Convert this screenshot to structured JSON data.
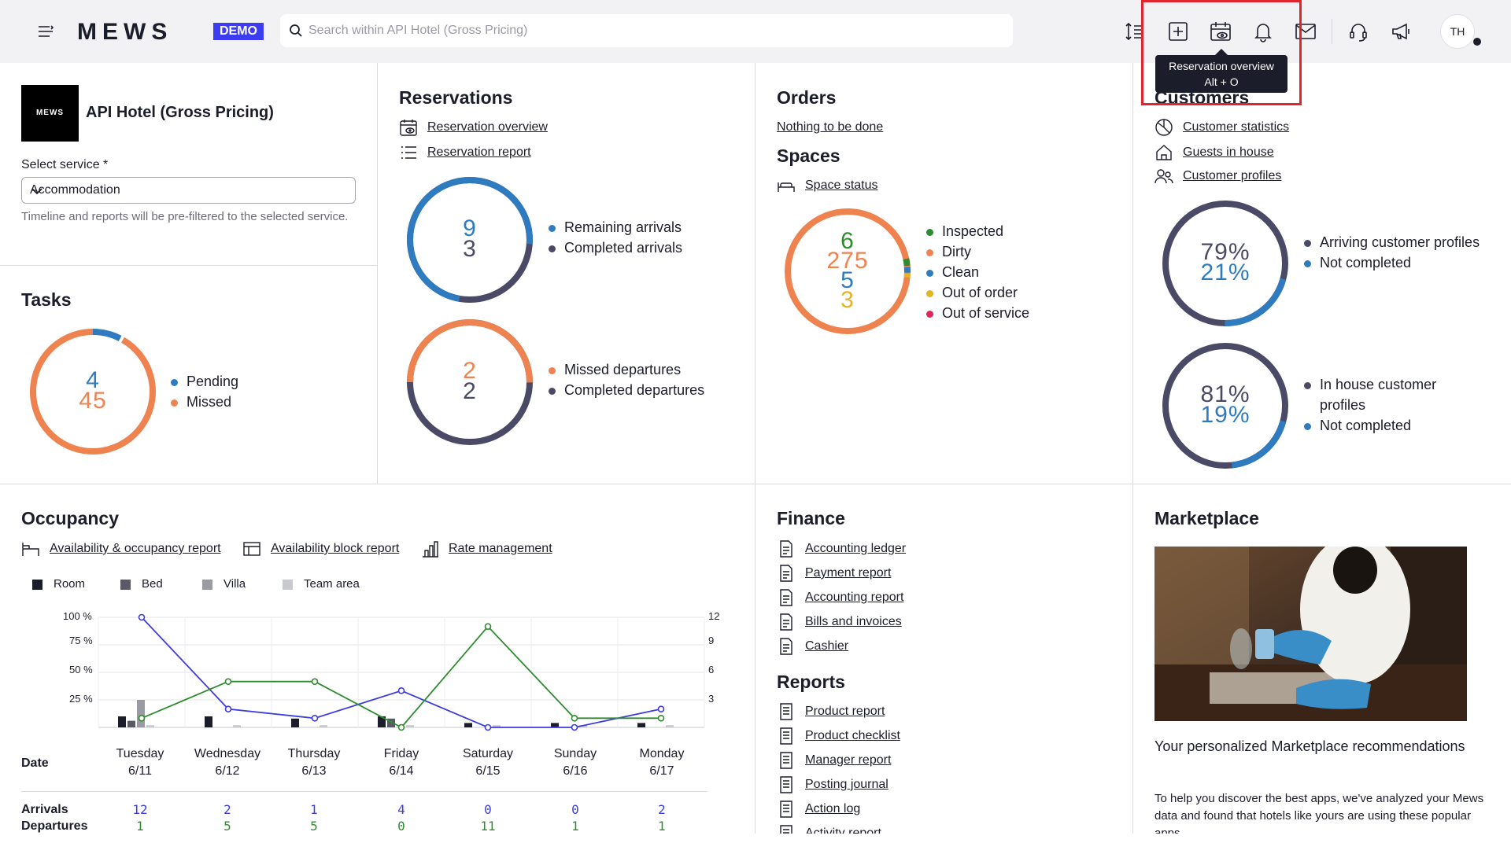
{
  "topbar": {
    "logo": "MEWS",
    "demo_badge": "DEMO",
    "search_placeholder": "Search within API Hotel (Gross Pricing)",
    "avatar_initials": "TH",
    "tooltip": {
      "title": "Reservation overview",
      "shortcut": "Alt + O"
    }
  },
  "hotel": {
    "logo_text": "MEWS",
    "name": "API Hotel (Gross Pricing)",
    "service_label": "Select service *",
    "service_value": "Accommodation",
    "service_help": "Timeline and reports will be pre-filtered to the selected service."
  },
  "tasks": {
    "title": "Tasks",
    "values": [
      "4",
      "45"
    ],
    "legend": [
      "Pending",
      "Missed"
    ]
  },
  "reservations": {
    "title": "Reservations",
    "links": [
      "Reservation overview",
      "Reservation report"
    ],
    "arrivals": {
      "values": [
        "9",
        "3"
      ],
      "legend": [
        "Remaining arrivals",
        "Completed arrivals"
      ]
    },
    "departures": {
      "values": [
        "2",
        "2"
      ],
      "legend": [
        "Missed departures",
        "Completed departures"
      ]
    }
  },
  "orders": {
    "title": "Orders",
    "link": "Nothing to be done"
  },
  "spaces": {
    "title": "Spaces",
    "link": "Space status",
    "values": [
      "6",
      "275",
      "5",
      "3"
    ],
    "legend": [
      "Inspected",
      "Dirty",
      "Clean",
      "Out of order",
      "Out of service"
    ]
  },
  "customers": {
    "title": "Customers",
    "links": [
      "Customer statistics",
      "Guests in house",
      "Customer profiles"
    ],
    "arriving": {
      "values": [
        "79%",
        "21%"
      ],
      "legend": [
        "Arriving customer profiles",
        "Not completed"
      ]
    },
    "inhouse": {
      "values": [
        "81%",
        "19%"
      ],
      "legend": [
        "In house customer profiles",
        "Not completed"
      ]
    }
  },
  "occupancy": {
    "title": "Occupancy",
    "links": [
      "Availability & occupancy report",
      "Availability block report",
      "Rate management"
    ],
    "legend": [
      "Room",
      "Bed",
      "Villa",
      "Team area"
    ],
    "left_ticks": [
      "100 %",
      "75 %",
      "50 %",
      "25 %"
    ],
    "right_ticks": [
      "12",
      "9",
      "6",
      "3"
    ],
    "date_label": "Date",
    "days": [
      {
        "name": "Tuesday",
        "date": "6/11"
      },
      {
        "name": "Wednesday",
        "date": "6/12"
      },
      {
        "name": "Thursday",
        "date": "6/13"
      },
      {
        "name": "Friday",
        "date": "6/14"
      },
      {
        "name": "Saturday",
        "date": "6/15"
      },
      {
        "name": "Sunday",
        "date": "6/16"
      },
      {
        "name": "Monday",
        "date": "6/17"
      }
    ],
    "arrivals_label": "Arrivals",
    "departures_label": "Departures",
    "arrivals": [
      "12",
      "2",
      "1",
      "4",
      "0",
      "0",
      "2"
    ],
    "departures": [
      "1",
      "5",
      "5",
      "0",
      "11",
      "1",
      "1"
    ]
  },
  "chart_data": {
    "type": "line",
    "categories": [
      "6/11",
      "6/12",
      "6/13",
      "6/14",
      "6/15",
      "6/16",
      "6/17"
    ],
    "ylim": [
      0,
      100
    ],
    "y2lim": [
      0,
      12
    ],
    "series": [
      {
        "name": "Arrivals",
        "axis": "right",
        "color": "#3c3ce0",
        "values": [
          12,
          2,
          1,
          4,
          0,
          0,
          2
        ]
      },
      {
        "name": "Departures",
        "axis": "right",
        "color": "#2e8b2e",
        "values": [
          1,
          5,
          5,
          0,
          11,
          1,
          1
        ]
      }
    ],
    "bars": [
      {
        "name": "Room",
        "color": "#1c1d2a",
        "values": [
          10,
          10,
          8,
          10,
          4,
          4,
          4
        ]
      },
      {
        "name": "Bed",
        "color": "#5a5a66",
        "values": [
          6,
          0,
          0,
          8,
          0,
          0,
          0
        ]
      },
      {
        "name": "Villa",
        "color": "#9a9aa3",
        "values": [
          25,
          0,
          0,
          0,
          0,
          0,
          0
        ]
      },
      {
        "name": "Team area",
        "color": "#c8c8cf",
        "values": [
          2,
          2,
          2,
          2,
          2,
          2,
          2
        ]
      }
    ]
  },
  "finance": {
    "title": "Finance",
    "links": [
      "Accounting ledger",
      "Payment report",
      "Accounting report",
      "Bills and invoices",
      "Cashier"
    ]
  },
  "reports": {
    "title": "Reports",
    "links": [
      "Product report",
      "Product checklist",
      "Manager report",
      "Posting journal",
      "Action log",
      "Activity report"
    ]
  },
  "marketplace": {
    "title": "Marketplace",
    "card_title": "Your personalized Marketplace recommendations",
    "card_desc": "To help you discover the best apps, we've analyzed your Mews data and found that hotels like yours are using these popular apps."
  },
  "colors": {
    "blue": "#2f7bbf",
    "navy": "#4b4a66",
    "orange": "#ee8350",
    "green": "#2e8b2e",
    "yellow": "#e6b41e",
    "red": "#e0255a",
    "highlight": "#e0252f"
  }
}
